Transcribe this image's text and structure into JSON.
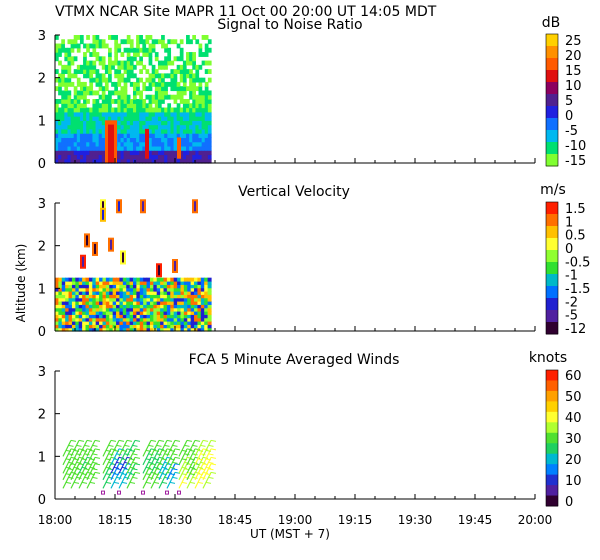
{
  "header": {
    "title": "VTMX   NCAR Site   MAPR 11 Oct 00   20:00 UT   14:05   MDT"
  },
  "chart_data": [
    {
      "type": "heatmap",
      "title": "Signal to Noise Ratio",
      "ylabel": "",
      "ylim": [
        0,
        3
      ],
      "y_ticks": [
        "0",
        "1",
        "2",
        "3"
      ],
      "colorbar": {
        "unit": "dB",
        "labels": [
          "25",
          "20",
          "15",
          "10",
          "5",
          "0",
          "-5",
          "-10",
          "-15"
        ],
        "colors": [
          "#ffd000",
          "#ff9000",
          "#ff5a00",
          "#e01010",
          "#8c0060",
          "#502090",
          "#2020e0",
          "#1070ff",
          "#00b8f0",
          "#00e070",
          "#80ff30"
        ]
      },
      "x_data_end": "18:39"
    },
    {
      "type": "heatmap",
      "title": "Vertical Velocity",
      "ylabel": "Altitude (km)",
      "ylim": [
        0,
        3
      ],
      "y_ticks": [
        "0",
        "1",
        "2",
        "3"
      ],
      "colorbar": {
        "unit": "m/s",
        "labels": [
          "1.5",
          "1",
          "0.5",
          "0",
          "-0.5",
          "-1",
          "-1.5",
          "-2",
          "-5",
          "-12"
        ],
        "colors": [
          "#ff2000",
          "#ff7000",
          "#ffc000",
          "#ffff30",
          "#90ff30",
          "#30e030",
          "#00b8c8",
          "#0070ff",
          "#2020d0",
          "#5020a0",
          "#300030"
        ]
      },
      "x_data_end": "18:39"
    },
    {
      "type": "scatter",
      "title": "FCA 5 Minute Averaged Winds",
      "ylabel": "",
      "ylim": [
        0,
        3
      ],
      "y_ticks": [
        "0",
        "1",
        "2",
        "3"
      ],
      "colorbar": {
        "unit": "knots",
        "labels": [
          "60",
          "50",
          "40",
          "30",
          "20",
          "10",
          "0"
        ],
        "colors": [
          "#ff2000",
          "#ff6000",
          "#ffa000",
          "#ffd000",
          "#ffff30",
          "#b0ff30",
          "#50e030",
          "#20d060",
          "#00b8d0",
          "#0080ff",
          "#2030d0",
          "#5020a0",
          "#300030"
        ]
      },
      "wind_times_min": [
        2,
        4,
        6,
        8,
        12,
        14,
        16,
        18,
        22,
        24,
        26,
        28,
        31,
        33,
        35,
        37
      ],
      "wind_alts_km": [
        0.25,
        0.45,
        0.6,
        0.8,
        1.0
      ],
      "wind_speed_kts": [
        [
          30,
          32,
          28,
          30,
          26,
          18,
          22,
          30,
          28,
          30,
          25,
          20,
          38,
          34,
          40,
          36
        ],
        [
          28,
          30,
          30,
          28,
          24,
          14,
          18,
          26,
          30,
          28,
          22,
          16,
          36,
          32,
          38,
          40
        ],
        [
          32,
          30,
          26,
          30,
          28,
          10,
          12,
          28,
          26,
          24,
          20,
          30,
          34,
          30,
          36,
          38
        ],
        [
          30,
          28,
          30,
          32,
          30,
          20,
          26,
          30,
          24,
          26,
          30,
          32,
          30,
          28,
          40,
          42
        ],
        [
          28,
          30,
          32,
          30,
          28,
          30,
          28,
          26,
          30,
          28,
          30,
          30,
          32,
          30,
          34,
          36
        ]
      ]
    }
  ],
  "x_axis": {
    "ticks": [
      "18:00",
      "18:15",
      "18:30",
      "18:45",
      "19:00",
      "19:15",
      "19:30",
      "19:45",
      "20:00"
    ],
    "label": "UT  (MST + 7)"
  }
}
